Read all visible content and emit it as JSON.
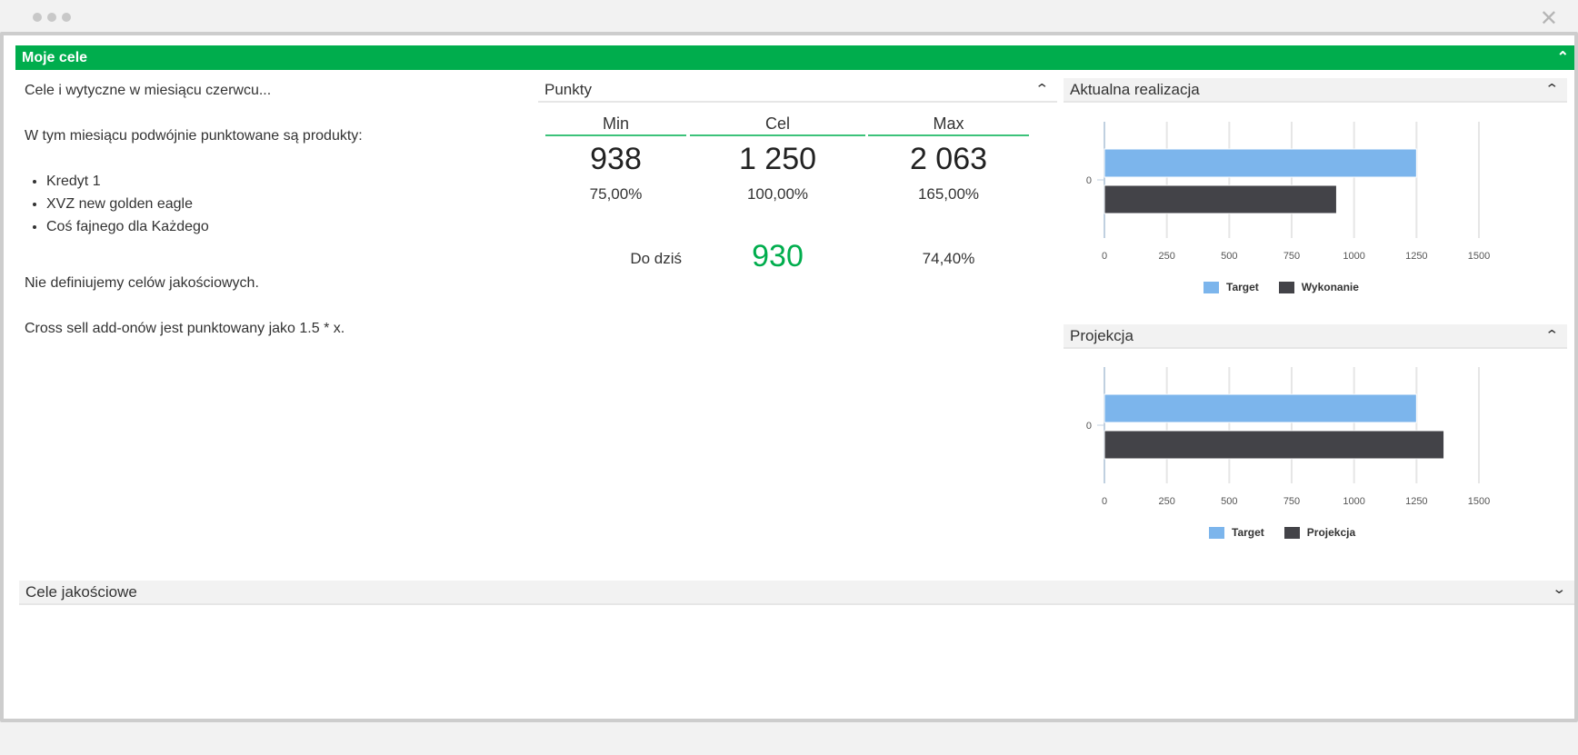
{
  "window": {
    "close_icon": "close-icon"
  },
  "panel": {
    "title": "Moje cele"
  },
  "intro": {
    "line1": "Cele i wytyczne w miesiącu czerwcu...",
    "line2": "W tym miesiącu podwójnie punktowane są produkty:",
    "products": [
      "Kredyt 1",
      "XVZ new golden eagle",
      "Coś fajnego dla Każdego"
    ],
    "line3": "Nie definiujemy celów jakościowych.",
    "line4": "Cross sell add-onów jest punktowany jako 1.5 * x."
  },
  "punkty": {
    "title": "Punkty",
    "columns": [
      {
        "label": "Min",
        "value": "938",
        "percent": "75,00%"
      },
      {
        "label": "Cel",
        "value": "1 250",
        "percent": "100,00%"
      },
      {
        "label": "Max",
        "value": "2 063",
        "percent": "165,00%"
      }
    ],
    "today": {
      "label": "Do dziś",
      "value": "930",
      "percent": "74,40%"
    }
  },
  "colors": {
    "green": "#00ad4d",
    "target": "#7cb5ec",
    "actual": "#434348"
  },
  "chart_data": [
    {
      "type": "bar",
      "title": "Aktualna realizacja",
      "categories": [
        "0"
      ],
      "xlim": [
        0,
        1500
      ],
      "ticks": [
        "0",
        "250",
        "500",
        "750",
        "1000",
        "1250",
        "1500"
      ],
      "series": [
        {
          "name": "Target",
          "values": [
            1250
          ]
        },
        {
          "name": "Wykonanie",
          "values": [
            930
          ]
        }
      ],
      "legend": "bottom"
    },
    {
      "type": "bar",
      "title": "Projekcja",
      "categories": [
        "0"
      ],
      "xlim": [
        0,
        1500
      ],
      "ticks": [
        "0",
        "250",
        "500",
        "750",
        "1000",
        "1250",
        "1500"
      ],
      "series": [
        {
          "name": "Target",
          "values": [
            1250
          ]
        },
        {
          "name": "Projekcja",
          "values": [
            1360
          ]
        }
      ],
      "legend": "bottom"
    }
  ],
  "quality": {
    "title": "Cele jakościowe"
  }
}
